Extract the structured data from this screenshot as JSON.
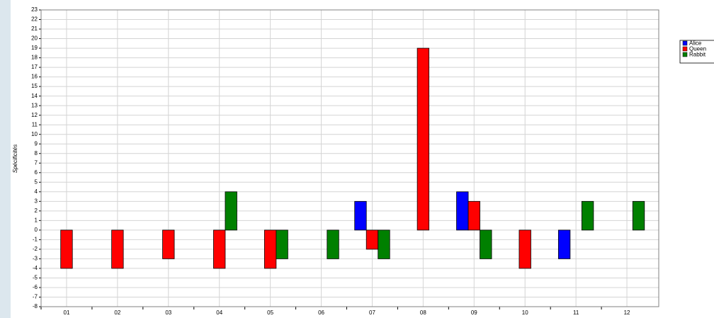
{
  "chart_data": {
    "type": "bar",
    "y_label": "Spécificités",
    "categories": [
      "01",
      "02",
      "03",
      "04",
      "05",
      "06",
      "07",
      "08",
      "09",
      "10",
      "11",
      "12"
    ],
    "series": [
      {
        "name": "Alice",
        "color": "#0000ff",
        "values": [
          0,
          0,
          0,
          0,
          0,
          0,
          3,
          0,
          4,
          0,
          -3,
          0
        ]
      },
      {
        "name": "Queen",
        "color": "#ff0000",
        "values": [
          -4,
          -4,
          -3,
          -4,
          -4,
          0,
          -2,
          19,
          3,
          -4,
          0,
          0
        ]
      },
      {
        "name": "Rabbit",
        "color": "#008000",
        "values": [
          0,
          0,
          0,
          4,
          -3,
          -3,
          -3,
          0,
          -3,
          0,
          3,
          3
        ]
      }
    ],
    "ylim": [
      -8,
      23
    ],
    "yticks": [
      -8,
      -7,
      -6,
      -5,
      -4,
      -3,
      -2,
      -1,
      0,
      1,
      2,
      3,
      4,
      5,
      6,
      7,
      8,
      9,
      10,
      11,
      12,
      13,
      14,
      15,
      16,
      17,
      18,
      19,
      20,
      21,
      22,
      23
    ],
    "grid": true,
    "legend": "upper right"
  }
}
